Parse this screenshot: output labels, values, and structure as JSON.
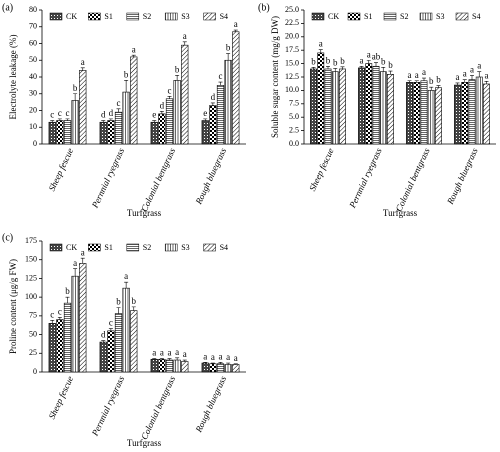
{
  "chart_data": [
    {
      "type": "bar",
      "panel_label": "(a)",
      "ylabel": "Electrolyte leakage (%)",
      "xlabel": "Turfgrass",
      "categories": [
        "Sheep fescue",
        "Pernnial ryegrass",
        "Colonial bentgrass",
        "Rough bluegrass"
      ],
      "ylim": [
        0,
        80
      ],
      "yticks": [
        0,
        10,
        20,
        30,
        40,
        50,
        60,
        70,
        80
      ],
      "series": [
        {
          "name": "CK",
          "pattern": "checker-fine",
          "values": [
            13,
            13,
            13,
            14
          ],
          "errors": [
            1,
            1,
            1,
            1
          ],
          "letters": [
            "c",
            "d",
            "e",
            "e"
          ]
        },
        {
          "name": "S1",
          "pattern": "checker",
          "values": [
            14,
            14,
            18,
            23
          ],
          "errors": [
            1,
            1,
            1.5,
            1.5
          ],
          "letters": [
            "c",
            "d",
            "d",
            "d"
          ]
        },
        {
          "name": "S2",
          "pattern": "hlines",
          "values": [
            14,
            19,
            27,
            35
          ],
          "errors": [
            1,
            2,
            1.5,
            2
          ],
          "letters": [
            "c",
            "c",
            "c",
            "c"
          ]
        },
        {
          "name": "S3",
          "pattern": "vlines",
          "values": [
            26,
            31,
            38,
            50
          ],
          "errors": [
            4,
            7,
            3,
            4
          ],
          "letters": [
            "b",
            "b",
            "b",
            "b"
          ]
        },
        {
          "name": "S4",
          "pattern": "diag",
          "values": [
            44,
            52,
            59,
            67
          ],
          "errors": [
            1.5,
            1,
            2,
            1
          ],
          "letters": [
            "a",
            "a",
            "a",
            "a"
          ]
        }
      ]
    },
    {
      "type": "bar",
      "panel_label": "(b)",
      "ylabel": "Soluble sugar content (mg/g DW)",
      "xlabel": "Turfgrass",
      "categories": [
        "Sheep fescue",
        "Pernnial ryegrass",
        "Colonial bentgrass",
        "Rough bluegrass"
      ],
      "ylim": [
        0,
        25
      ],
      "yticks": [
        {
          "value": 0,
          "label": "0.0"
        },
        2.5,
        {
          "value": 5,
          "label": "5.0"
        },
        7.5,
        {
          "value": 10,
          "label": "10.0"
        },
        12.5,
        {
          "value": 15,
          "label": "15.0"
        },
        17.5,
        {
          "value": 20,
          "label": "20.0"
        },
        22.5,
        {
          "value": 25,
          "label": "25.0"
        }
      ],
      "series": [
        {
          "name": "CK",
          "pattern": "checker-fine",
          "values": [
            14.0,
            14.2,
            11.5,
            11.0
          ],
          "errors": [
            0.3,
            0.3,
            0.3,
            0.4
          ],
          "letters": [
            "b",
            "a",
            "a",
            "a"
          ]
        },
        {
          "name": "S1",
          "pattern": "checker",
          "values": [
            17.0,
            15.0,
            11.5,
            11.5
          ],
          "errors": [
            0.6,
            0.6,
            0.3,
            0.5
          ],
          "letters": [
            "a",
            "a",
            "a",
            "a"
          ]
        },
        {
          "name": "S2",
          "pattern": "hlines",
          "values": [
            14.0,
            14.5,
            11.8,
            12.0
          ],
          "errors": [
            0.5,
            0.7,
            0.5,
            0.8
          ],
          "letters": [
            "b",
            "ab",
            "a",
            "a"
          ]
        },
        {
          "name": "S3",
          "pattern": "vlines",
          "values": [
            13.5,
            13.5,
            10.0,
            12.5
          ],
          "errors": [
            0.6,
            0.8,
            0.6,
            1.0
          ],
          "letters": [
            "b",
            "b",
            "b",
            "a"
          ]
        },
        {
          "name": "S4",
          "pattern": "diag",
          "values": [
            14.0,
            13.0,
            10.5,
            11.2
          ],
          "errors": [
            0.4,
            0.6,
            0.4,
            0.5
          ],
          "letters": [
            "b",
            "b",
            "b",
            "a"
          ]
        }
      ]
    },
    {
      "type": "bar",
      "panel_label": "(c)",
      "ylabel": "Proline content (μg/g FW)",
      "xlabel": "Turfgrass",
      "categories": [
        "Sheep fescue",
        "Pernnial ryegrass",
        "Colonial bentgrass",
        "Rough bluegrass"
      ],
      "ylim": [
        0,
        175
      ],
      "yticks": [
        0,
        25,
        50,
        75,
        100,
        125,
        150,
        175
      ],
      "series": [
        {
          "name": "CK",
          "pattern": "checker-fine",
          "values": [
            65,
            40,
            17,
            12
          ],
          "errors": [
            4,
            2,
            1,
            1
          ],
          "letters": [
            "c",
            "d",
            "a",
            "a"
          ]
        },
        {
          "name": "S1",
          "pattern": "checker",
          "values": [
            70,
            55,
            17,
            11
          ],
          "errors": [
            3,
            3,
            1,
            1
          ],
          "letters": [
            "c",
            "c",
            "a",
            "a"
          ]
        },
        {
          "name": "S2",
          "pattern": "hlines",
          "values": [
            92,
            78,
            16,
            11
          ],
          "errors": [
            8,
            8,
            2,
            2
          ],
          "letters": [
            "b",
            "b",
            "a",
            "a"
          ]
        },
        {
          "name": "S3",
          "pattern": "vlines",
          "values": [
            128,
            112,
            16,
            10
          ],
          "errors": [
            10,
            8,
            3,
            2
          ],
          "letters": [
            "a",
            "a",
            "a",
            "a"
          ]
        },
        {
          "name": "S4",
          "pattern": "diag",
          "values": [
            145,
            82,
            14,
            10
          ],
          "errors": [
            7,
            5,
            2,
            1
          ],
          "letters": [
            "a",
            "b",
            "a",
            "a"
          ]
        }
      ]
    }
  ]
}
